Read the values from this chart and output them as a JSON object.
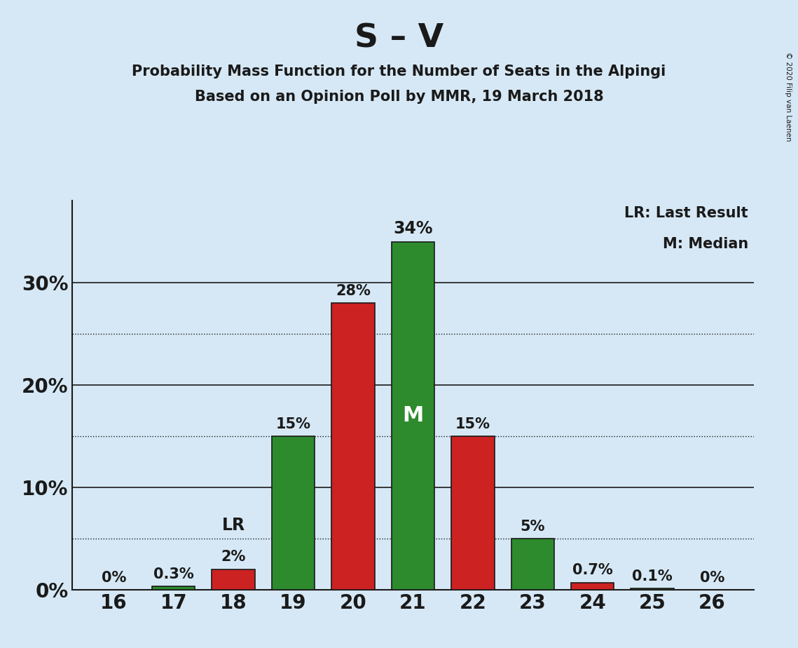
{
  "title": "S – V",
  "subtitle1": "Probability Mass Function for the Number of Seats in the Alpingi",
  "subtitle2": "Based on an Opinion Poll by MMR, 19 March 2018",
  "copyright": "© 2020 Filip van Laenen",
  "seats": [
    16,
    17,
    18,
    19,
    20,
    21,
    22,
    23,
    24,
    25,
    26
  ],
  "green_values": [
    0.0,
    0.3,
    0.0,
    15.0,
    0.0,
    34.0,
    0.0,
    5.0,
    0.0,
    0.1,
    0.0
  ],
  "red_values": [
    0.0,
    0.0,
    2.0,
    0.0,
    28.0,
    0.0,
    15.0,
    0.0,
    0.7,
    0.0,
    0.0
  ],
  "green_labels": [
    "",
    "0.3%",
    "",
    "15%",
    "",
    "34%",
    "",
    "5%",
    "",
    "0.1%",
    ""
  ],
  "red_labels": [
    "0%",
    "",
    "2%",
    "",
    "28%",
    "",
    "15%",
    "",
    "0.7%",
    "",
    "0%"
  ],
  "median_seat": 21,
  "lr_seat": 18,
  "green_color": "#2d8b2d",
  "red_color": "#cc2222",
  "bg_color": "#d6e8f5",
  "bar_edge_color": "#1a1a1a",
  "text_color": "#1a1a1a",
  "axis_color": "#1a1a1a",
  "yticks": [
    0,
    10,
    20,
    30
  ],
  "yticks_dotted": [
    5,
    15,
    25
  ],
  "ylim": [
    0,
    38
  ],
  "legend_lr": "LR: Last Result",
  "legend_m": "M: Median",
  "bar_width": 0.72
}
